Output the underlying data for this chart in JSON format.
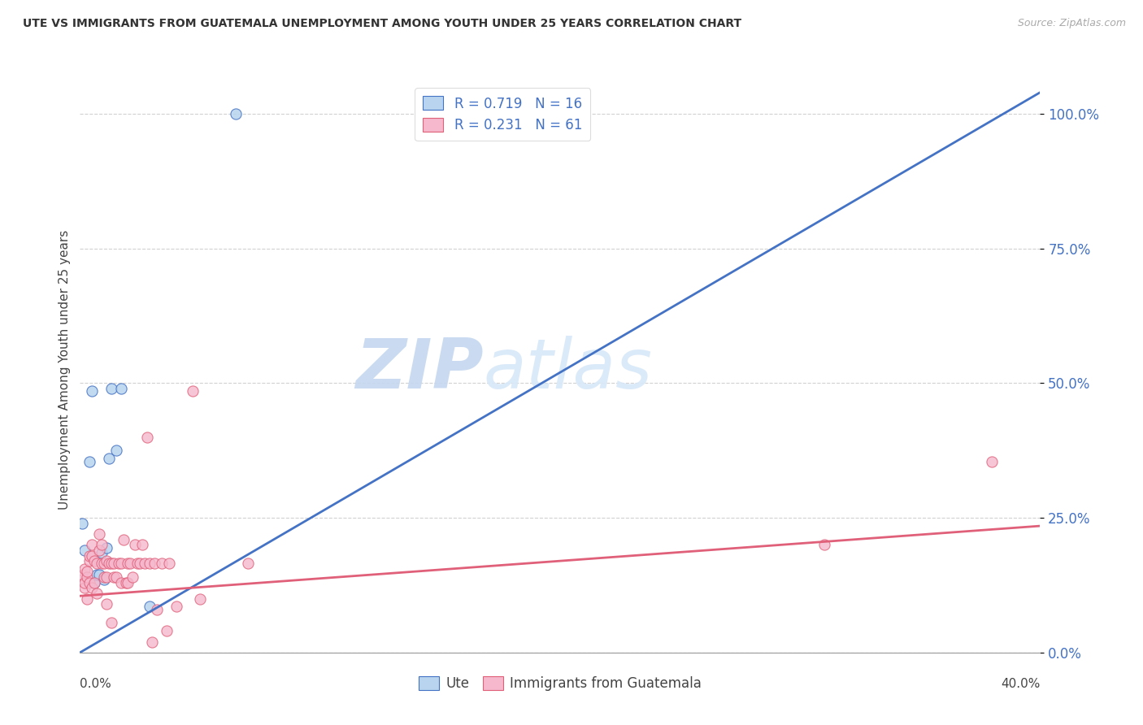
{
  "title": "UTE VS IMMIGRANTS FROM GUATEMALA UNEMPLOYMENT AMONG YOUTH UNDER 25 YEARS CORRELATION CHART",
  "source": "Source: ZipAtlas.com",
  "ylabel": "Unemployment Among Youth under 25 years",
  "watermark_zip": "ZIP",
  "watermark_atlas": "atlas",
  "blue_color": "#b8d4ee",
  "pink_color": "#f5b8cc",
  "blue_line_color": "#4472c4",
  "pink_line_color": "#e0607a",
  "ute_points": [
    [
      0.001,
      0.24
    ],
    [
      0.002,
      0.19
    ],
    [
      0.004,
      0.355
    ],
    [
      0.005,
      0.485
    ],
    [
      0.006,
      0.13
    ],
    [
      0.007,
      0.145
    ],
    [
      0.008,
      0.145
    ],
    [
      0.009,
      0.185
    ],
    [
      0.01,
      0.135
    ],
    [
      0.011,
      0.195
    ],
    [
      0.012,
      0.36
    ],
    [
      0.013,
      0.49
    ],
    [
      0.015,
      0.375
    ],
    [
      0.017,
      0.49
    ],
    [
      0.029,
      0.085
    ],
    [
      0.065,
      1.0
    ]
  ],
  "guatemala_points": [
    [
      0.001,
      0.135
    ],
    [
      0.001,
      0.145
    ],
    [
      0.002,
      0.12
    ],
    [
      0.002,
      0.155
    ],
    [
      0.002,
      0.13
    ],
    [
      0.003,
      0.1
    ],
    [
      0.003,
      0.14
    ],
    [
      0.003,
      0.15
    ],
    [
      0.004,
      0.13
    ],
    [
      0.004,
      0.17
    ],
    [
      0.004,
      0.18
    ],
    [
      0.005,
      0.2
    ],
    [
      0.005,
      0.12
    ],
    [
      0.005,
      0.18
    ],
    [
      0.006,
      0.17
    ],
    [
      0.006,
      0.13
    ],
    [
      0.007,
      0.165
    ],
    [
      0.007,
      0.11
    ],
    [
      0.008,
      0.22
    ],
    [
      0.008,
      0.19
    ],
    [
      0.009,
      0.165
    ],
    [
      0.009,
      0.2
    ],
    [
      0.01,
      0.165
    ],
    [
      0.01,
      0.14
    ],
    [
      0.011,
      0.17
    ],
    [
      0.011,
      0.14
    ],
    [
      0.011,
      0.09
    ],
    [
      0.012,
      0.165
    ],
    [
      0.013,
      0.165
    ],
    [
      0.013,
      0.055
    ],
    [
      0.014,
      0.165
    ],
    [
      0.014,
      0.14
    ],
    [
      0.015,
      0.14
    ],
    [
      0.016,
      0.165
    ],
    [
      0.017,
      0.165
    ],
    [
      0.017,
      0.13
    ],
    [
      0.018,
      0.21
    ],
    [
      0.019,
      0.13
    ],
    [
      0.02,
      0.165
    ],
    [
      0.02,
      0.13
    ],
    [
      0.021,
      0.165
    ],
    [
      0.022,
      0.14
    ],
    [
      0.023,
      0.2
    ],
    [
      0.024,
      0.165
    ],
    [
      0.025,
      0.165
    ],
    [
      0.026,
      0.2
    ],
    [
      0.027,
      0.165
    ],
    [
      0.028,
      0.4
    ],
    [
      0.029,
      0.165
    ],
    [
      0.03,
      0.02
    ],
    [
      0.031,
      0.165
    ],
    [
      0.032,
      0.08
    ],
    [
      0.034,
      0.165
    ],
    [
      0.036,
      0.04
    ],
    [
      0.037,
      0.165
    ],
    [
      0.04,
      0.085
    ],
    [
      0.047,
      0.485
    ],
    [
      0.05,
      0.1
    ],
    [
      0.07,
      0.165
    ],
    [
      0.31,
      0.2
    ],
    [
      0.38,
      0.355
    ]
  ],
  "blue_line_x0": 0.0,
  "blue_line_x1": 0.4,
  "blue_line_y0": 0.0,
  "blue_line_y1": 1.04,
  "pink_line_x0": 0.0,
  "pink_line_x1": 0.4,
  "pink_line_y0": 0.105,
  "pink_line_y1": 0.235,
  "xlim": [
    0.0,
    0.4
  ],
  "ylim": [
    0.0,
    1.05
  ],
  "ytick_positions": [
    0.0,
    0.25,
    0.5,
    0.75,
    1.0
  ],
  "ytick_labels": [
    "0.0%",
    "25.0%",
    "50.0%",
    "75.0%",
    "100.0%"
  ],
  "background_color": "#ffffff",
  "grid_color": "#cccccc"
}
